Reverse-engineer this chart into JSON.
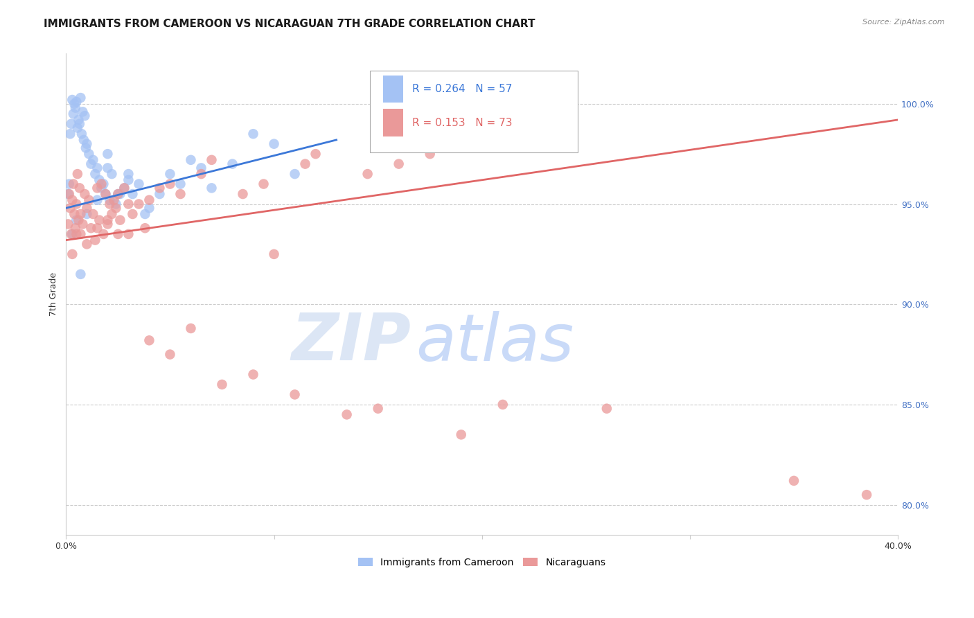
{
  "title": "IMMIGRANTS FROM CAMEROON VS NICARAGUAN 7TH GRADE CORRELATION CHART",
  "source": "Source: ZipAtlas.com",
  "ylabel": "7th Grade",
  "yticks": [
    80.0,
    85.0,
    90.0,
    95.0,
    100.0
  ],
  "xmin": 0.0,
  "xmax": 40.0,
  "ymin": 78.5,
  "ymax": 102.5,
  "blue_color": "#a4c2f4",
  "pink_color": "#ea9999",
  "blue_line_color": "#3c78d8",
  "pink_line_color": "#e06666",
  "watermark_color_zip": "#dce6f5",
  "watermark_color_atlas": "#c9daf8",
  "blue_R": "0.264",
  "blue_N": "57",
  "pink_R": "0.153",
  "pink_N": "73",
  "blue_trendline_x": [
    0.0,
    13.0
  ],
  "blue_trendline_y": [
    94.8,
    98.2
  ],
  "pink_trendline_x": [
    0.0,
    40.0
  ],
  "pink_trendline_y": [
    93.2,
    99.2
  ],
  "blue_scatter_x": [
    0.1,
    0.15,
    0.2,
    0.25,
    0.3,
    0.35,
    0.4,
    0.45,
    0.5,
    0.55,
    0.6,
    0.65,
    0.7,
    0.75,
    0.8,
    0.85,
    0.9,
    0.95,
    1.0,
    1.1,
    1.2,
    1.3,
    1.4,
    1.5,
    1.6,
    1.7,
    1.8,
    1.9,
    2.0,
    2.1,
    2.2,
    2.4,
    2.6,
    2.8,
    3.0,
    3.2,
    3.5,
    3.8,
    4.0,
    4.5,
    5.0,
    5.5,
    6.0,
    6.5,
    7.0,
    8.0,
    9.0,
    10.0,
    11.0,
    0.3,
    0.5,
    0.7,
    1.0,
    1.5,
    2.0,
    2.5,
    3.0
  ],
  "blue_scatter_y": [
    95.5,
    96.0,
    98.5,
    99.0,
    100.2,
    99.5,
    100.0,
    99.8,
    100.1,
    98.8,
    99.2,
    99.0,
    100.3,
    98.5,
    99.6,
    98.2,
    99.4,
    97.8,
    98.0,
    97.5,
    97.0,
    97.2,
    96.5,
    96.8,
    96.2,
    95.8,
    96.0,
    95.5,
    97.5,
    95.2,
    96.5,
    95.0,
    95.5,
    95.8,
    96.2,
    95.5,
    96.0,
    94.5,
    94.8,
    95.5,
    96.5,
    96.0,
    97.2,
    96.8,
    95.8,
    97.0,
    98.5,
    98.0,
    96.5,
    93.5,
    94.2,
    91.5,
    94.5,
    95.2,
    96.8,
    95.5,
    96.5
  ],
  "pink_scatter_x": [
    0.1,
    0.15,
    0.2,
    0.25,
    0.3,
    0.35,
    0.4,
    0.45,
    0.5,
    0.55,
    0.6,
    0.65,
    0.7,
    0.8,
    0.9,
    1.0,
    1.1,
    1.2,
    1.3,
    1.4,
    1.5,
    1.6,
    1.7,
    1.8,
    1.9,
    2.0,
    2.1,
    2.2,
    2.3,
    2.4,
    2.5,
    2.6,
    2.8,
    3.0,
    3.2,
    3.5,
    3.8,
    4.0,
    4.5,
    5.0,
    5.5,
    6.5,
    7.0,
    8.5,
    9.5,
    11.5,
    12.0,
    14.5,
    16.0,
    17.5,
    23.0,
    0.3,
    0.5,
    0.7,
    1.0,
    1.5,
    2.0,
    2.5,
    3.0,
    4.0,
    5.0,
    6.0,
    7.5,
    9.0,
    11.0,
    13.5,
    19.0,
    21.0,
    26.0,
    35.0,
    38.5,
    10.0,
    15.0
  ],
  "pink_scatter_y": [
    94.0,
    95.5,
    94.8,
    93.5,
    95.2,
    96.0,
    94.5,
    93.8,
    95.0,
    96.5,
    94.2,
    95.8,
    93.5,
    94.0,
    95.5,
    94.8,
    95.2,
    93.8,
    94.5,
    93.2,
    95.8,
    94.2,
    96.0,
    93.5,
    95.5,
    94.0,
    95.0,
    94.5,
    95.2,
    94.8,
    95.5,
    94.2,
    95.8,
    93.5,
    94.5,
    95.0,
    93.8,
    95.2,
    95.8,
    96.0,
    95.5,
    96.5,
    97.2,
    95.5,
    96.0,
    97.0,
    97.5,
    96.5,
    97.0,
    97.5,
    100.8,
    92.5,
    93.5,
    94.5,
    93.0,
    93.8,
    94.2,
    93.5,
    95.0,
    88.2,
    87.5,
    88.8,
    86.0,
    86.5,
    85.5,
    84.5,
    83.5,
    85.0,
    84.8,
    81.2,
    80.5,
    92.5,
    84.8
  ],
  "grid_color": "#cccccc",
  "background_color": "#ffffff",
  "title_fontsize": 11,
  "axis_label_fontsize": 9,
  "tick_fontsize": 9,
  "source_fontsize": 8
}
